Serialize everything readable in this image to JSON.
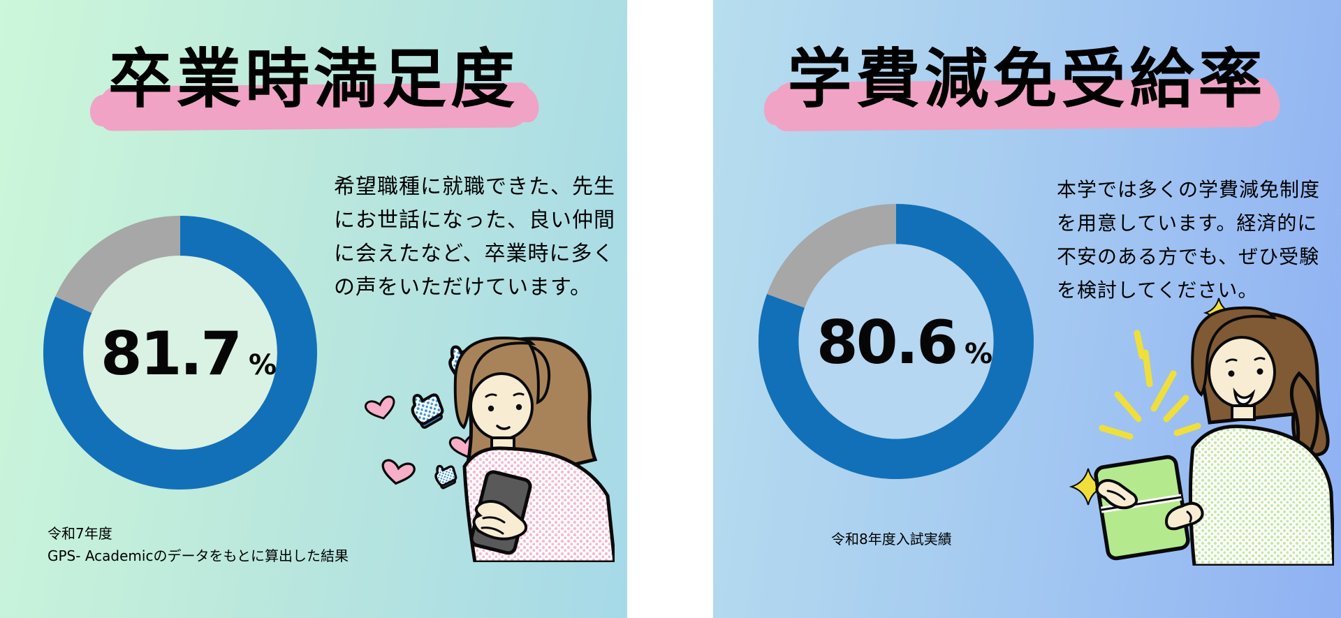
{
  "page": {
    "divider_color": "#ffffff",
    "accent_pink": "#f0a3c4"
  },
  "panels": [
    {
      "id": "graduation-satisfaction",
      "title": "卒業時満足度",
      "percent": "81.7",
      "percent_unit": "%",
      "description_lines": [
        "希望職種に就職できた、先生",
        "にお世話になった、良い仲間",
        "に会えたなど、卒業時に多く",
        "の声をいただけています。"
      ],
      "footnote_lines": [
        "令和7年度",
        "GPS- Academicのデータをもとに算出した結果"
      ],
      "illustration": "woman-with-phone-hearts-and-likes"
    },
    {
      "id": "tuition-reduction-rate",
      "title": "学費減免受給率",
      "percent": "80.6",
      "percent_unit": "%",
      "description_lines": [
        "本学では多くの学費減免制度",
        "を用意しています。経済的に",
        "不安のある方でも、ぜひ受験",
        "を検討してください。"
      ],
      "footnote_lines": [
        "令和8年度入試実績"
      ],
      "illustration": "woman-with-green-book-and-sparkles"
    }
  ],
  "chart_data": [
    {
      "type": "pie",
      "variant": "donut",
      "title": "卒業時満足度",
      "series": [
        {
          "name": "value",
          "value": 81.7,
          "color": "#1270b9"
        },
        {
          "name": "remainder",
          "value": 18.3,
          "color": "#a7a7a7"
        }
      ],
      "center_label": "81.7 %",
      "center_fill": "#d9f2e3",
      "start_angle": "top",
      "direction": "clockwise"
    },
    {
      "type": "pie",
      "variant": "donut",
      "title": "学費減免受給率",
      "series": [
        {
          "name": "value",
          "value": 80.6,
          "color": "#1270b9"
        },
        {
          "name": "remainder",
          "value": 19.4,
          "color": "#a7a7a7"
        }
      ],
      "center_label": "80.6 %",
      "center_fill": "#b5d7f1",
      "start_angle": "top",
      "direction": "clockwise"
    }
  ]
}
